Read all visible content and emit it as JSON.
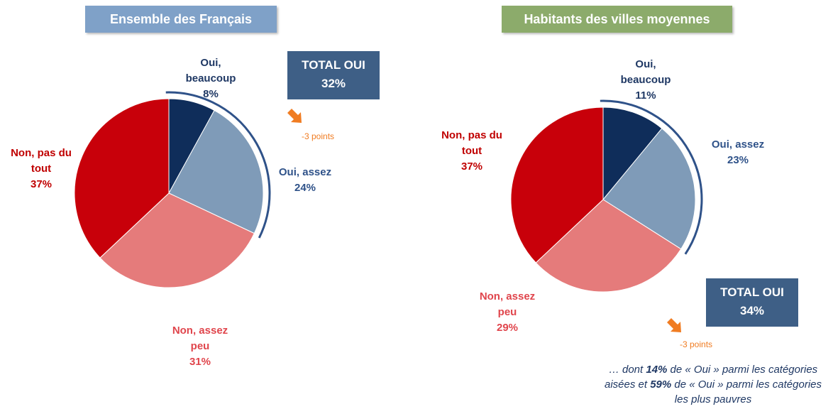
{
  "chart_data": [
    {
      "type": "pie",
      "title": "Ensemble des Français",
      "categories": [
        "Oui, beaucoup",
        "Oui, assez",
        "Non, assez peu",
        "Non, pas du tout"
      ],
      "values": [
        8,
        24,
        31,
        37
      ],
      "value_labels": [
        "8%",
        "24%",
        "31%",
        "37%"
      ],
      "colors": [
        "#0f2d5a",
        "#7f9bb8",
        "#e57b7b",
        "#c8000a"
      ],
      "label_colors": [
        "#1f3864",
        "#2f5289",
        "#e0454c",
        "#c00000"
      ],
      "title_color": "#7fa1c8",
      "total_label": "TOTAL OUI",
      "total": "32%",
      "change": "-3 points"
    },
    {
      "type": "pie",
      "title": "Habitants des villes moyennes",
      "categories": [
        "Oui, beaucoup",
        "Oui, assez",
        "Non, assez peu",
        "Non, pas du tout"
      ],
      "values": [
        11,
        23,
        29,
        37
      ],
      "value_labels": [
        "11%",
        "23%",
        "29%",
        "37%"
      ],
      "colors": [
        "#0f2d5a",
        "#7f9bb8",
        "#e57b7b",
        "#c8000a"
      ],
      "label_colors": [
        "#1f3864",
        "#2f5289",
        "#e0454c",
        "#c00000"
      ],
      "title_color": "#8cab6b",
      "total_label": "TOTAL OUI",
      "total": "34%",
      "change": "-3 points",
      "note": [
        "… dont ",
        "14%",
        " de « Oui » parmi les catégories aisées et ",
        "59%",
        " de « Oui » parmi les catégories les plus pauvres"
      ]
    }
  ]
}
